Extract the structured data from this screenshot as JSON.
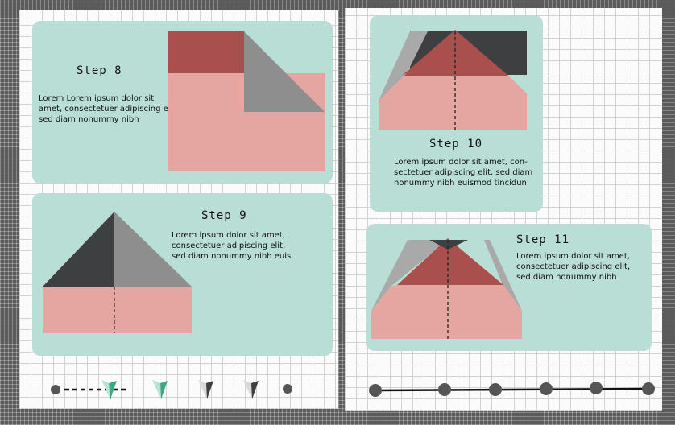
{
  "steps": [
    {
      "title": "Step 8",
      "text": "Lorem Lorem ipsum dolor sit amet, consectetuer adipiscing elit, sed diam nonummy nibh"
    },
    {
      "title": "Step 9",
      "text": "Lorem ipsum dolor sit amet, consectetuer adipiscing elit, sed diam nonummy nibh euis"
    },
    {
      "title": "Step 10",
      "text": "Lorem ipsum dolor sit amet, con-sectetuer adipiscing elit, sed diam nonummy nibh euismod tincidun"
    },
    {
      "title": "Step 11",
      "text": "Lorem ipsum dolor sit amet, consectetuer adipiscing elit, sed diam nonummy nibh"
    }
  ],
  "colors": {
    "card": "#b9ded6",
    "paper_front": "#e5a6a1",
    "paper_dark_red": "#a9504e",
    "fold_grey": "#8e8e8e",
    "fold_light_grey": "#a9a9a9",
    "fold_dark": "#3e3f41",
    "accent_green": "#3ea889"
  },
  "progress_left": {
    "icons": [
      "dot-icon",
      "paper-plane-icon",
      "paper-plane-icon",
      "paper-plane-icon",
      "paper-plane-icon",
      "dot-icon"
    ]
  },
  "progress_right": {
    "dots": 6
  }
}
